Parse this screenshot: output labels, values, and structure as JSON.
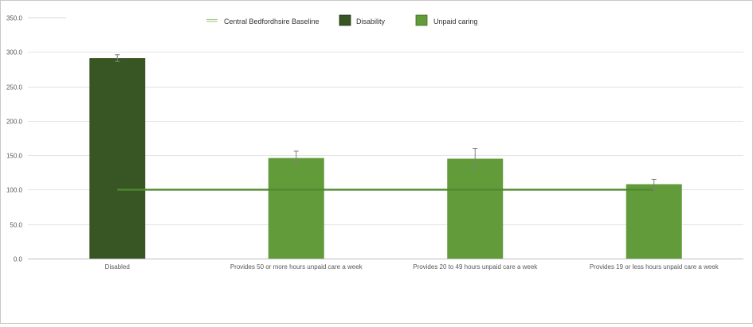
{
  "chart_data": {
    "type": "bar",
    "categories": [
      "Disabled",
      "Provides 50 or more hours unpaid care a week",
      "Provides 20 to 49 hours unpaid care a week",
      "Provides 19 or less hours unpaid care a week"
    ],
    "series": [
      {
        "name": "Disability",
        "values": [
          291,
          null,
          null,
          null
        ],
        "color": "#375623"
      },
      {
        "name": "Unpaid caring",
        "values": [
          null,
          146,
          145,
          108
        ],
        "color": "#629b3a"
      }
    ],
    "error_bars": [
      {
        "category": "Disabled",
        "low": 286,
        "high": 296
      },
      {
        "category": "Provides 50 or more hours unpaid care a week",
        "low": 138,
        "high": 156
      },
      {
        "category": "Provides 20 to 49 hours unpaid care a week",
        "low": 132,
        "high": 160
      },
      {
        "category": "Provides 19 or less hours unpaid care a week",
        "low": 100,
        "high": 115
      }
    ],
    "baseline": {
      "name": "Central Bedfordhsire Baseline",
      "value": 100,
      "color": "#4f8a2e"
    },
    "yticks": [
      "0.0",
      "50.0",
      "100.0",
      "150.0",
      "200.0",
      "250.0",
      "300.0",
      "350.0"
    ],
    "ylim": [
      0,
      350
    ],
    "title": "",
    "xlabel": "",
    "ylabel": "",
    "grid": true,
    "legend_position": "top"
  },
  "legend": {
    "baseline_label": "Central Bedfordhsire Baseline",
    "disability_label": "Disability",
    "caring_label": "Unpaid caring",
    "baseline_color": "#a9d08e",
    "disability_color": "#375623",
    "caring_color": "#629b3a"
  }
}
